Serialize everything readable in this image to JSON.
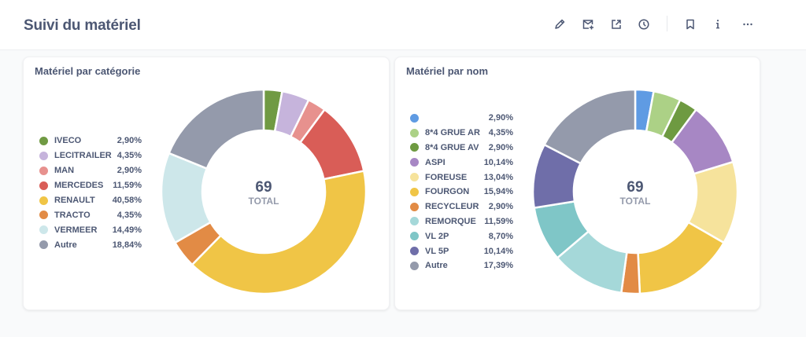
{
  "header": {
    "title": "Suivi du matériel",
    "toolbar": [
      {
        "name": "edit-button",
        "icon": "pencil-icon"
      },
      {
        "name": "subscribe-button",
        "icon": "mail-plus-icon"
      },
      {
        "name": "share-button",
        "icon": "external-link-icon"
      },
      {
        "name": "history-button",
        "icon": "clock-icon"
      },
      {
        "name": "bookmark-button",
        "icon": "bookmark-icon"
      },
      {
        "name": "info-button",
        "icon": "info-icon"
      },
      {
        "name": "more-button",
        "icon": "ellipsis-icon"
      }
    ]
  },
  "chart_data": [
    {
      "type": "pie",
      "variant": "donut",
      "title": "Matériel par catégorie",
      "center_value": "69",
      "center_label": "TOTAL",
      "legend_position": "left",
      "slices": [
        {
          "label": "IVECO",
          "value": 2.9,
          "display": "2,90%",
          "color": "#709a43"
        },
        {
          "label": "LECITRAILER",
          "value": 4.35,
          "display": "4,35%",
          "color": "#c6b4dc"
        },
        {
          "label": "MAN",
          "value": 2.9,
          "display": "2,90%",
          "color": "#e7918e"
        },
        {
          "label": "MERCEDES",
          "value": 11.59,
          "display": "11,59%",
          "color": "#d95d57"
        },
        {
          "label": "RENAULT",
          "value": 40.58,
          "display": "40,58%",
          "color": "#f0c546"
        },
        {
          "label": "TRACTO",
          "value": 4.35,
          "display": "4,35%",
          "color": "#e28b45"
        },
        {
          "label": "VERMEER",
          "value": 14.49,
          "display": "14,49%",
          "color": "#cde7ea"
        },
        {
          "label": "Autre",
          "value": 18.84,
          "display": "18,84%",
          "color": "#949aab"
        }
      ]
    },
    {
      "type": "pie",
      "variant": "donut",
      "title": "Matériel par nom",
      "center_value": "69",
      "center_label": "TOTAL",
      "legend_position": "left",
      "slices": [
        {
          "label": "",
          "value": 2.9,
          "display": "2,90%",
          "color": "#5f9be3"
        },
        {
          "label": "8*4 GRUE AR",
          "value": 4.35,
          "display": "4,35%",
          "color": "#acd186"
        },
        {
          "label": "8*4 GRUE AV",
          "value": 2.9,
          "display": "2,90%",
          "color": "#6e9a41"
        },
        {
          "label": "ASPI",
          "value": 10.14,
          "display": "10,14%",
          "color": "#a787c4"
        },
        {
          "label": "FOREUSE",
          "value": 13.04,
          "display": "13,04%",
          "color": "#f6e39c"
        },
        {
          "label": "FOURGON",
          "value": 15.94,
          "display": "15,94%",
          "color": "#f0c546"
        },
        {
          "label": "RECYCLEUR",
          "value": 2.9,
          "display": "2,90%",
          "color": "#e28b45"
        },
        {
          "label": "REMORQUE",
          "value": 11.59,
          "display": "11,59%",
          "color": "#a5d8d9"
        },
        {
          "label": "VL 2P",
          "value": 8.7,
          "display": "8,70%",
          "color": "#7fc6c7"
        },
        {
          "label": "VL 5P",
          "value": 10.14,
          "display": "10,14%",
          "color": "#6f6ea9"
        },
        {
          "label": "Autre",
          "value": 17.39,
          "display": "17,39%",
          "color": "#949aab"
        }
      ]
    }
  ]
}
